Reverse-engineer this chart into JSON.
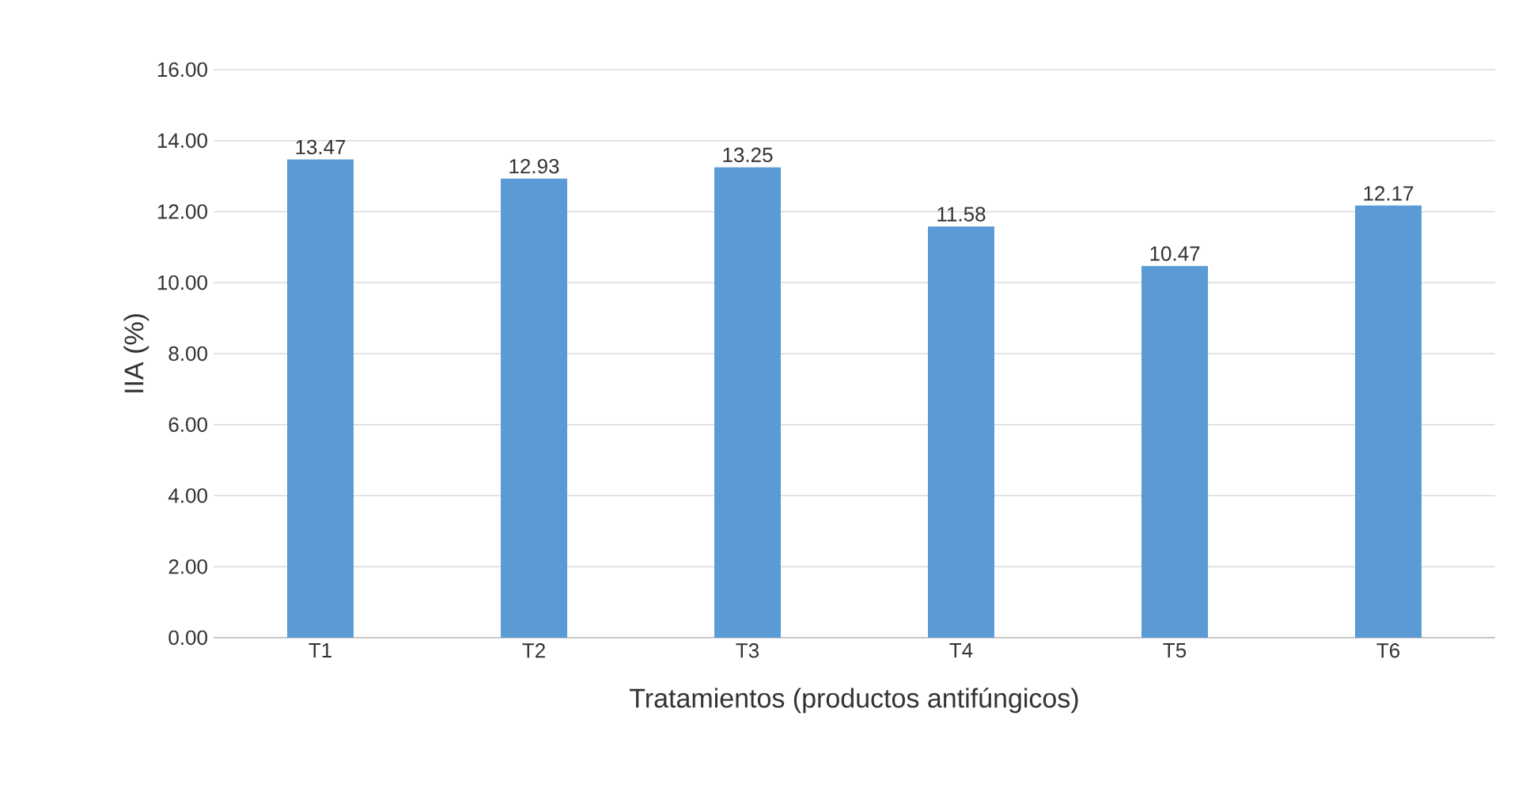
{
  "chart_data": {
    "type": "bar",
    "xlabel": "Tratamientos (productos antifúngicos)",
    "ylabel": "IIA (%)",
    "categories": [
      "T1",
      "T2",
      "T3",
      "T4",
      "T5",
      "T6"
    ],
    "values": [
      13.47,
      12.93,
      13.25,
      11.58,
      10.47,
      12.17
    ],
    "color": "#5b9bd5",
    "ylim": [
      0,
      16
    ],
    "yticks": [
      {
        "value": 0,
        "label": "0.00"
      },
      {
        "value": 2,
        "label": "2.00"
      },
      {
        "value": 4,
        "label": "4.00"
      },
      {
        "value": 6,
        "label": "6.00"
      },
      {
        "value": 8,
        "label": "8.00"
      },
      {
        "value": 10,
        "label": "10.00"
      },
      {
        "value": 12,
        "label": "12.00"
      },
      {
        "value": 14,
        "label": "14.00"
      },
      {
        "value": 16,
        "label": "16.00"
      }
    ],
    "grid": "y",
    "data_labels": true
  }
}
